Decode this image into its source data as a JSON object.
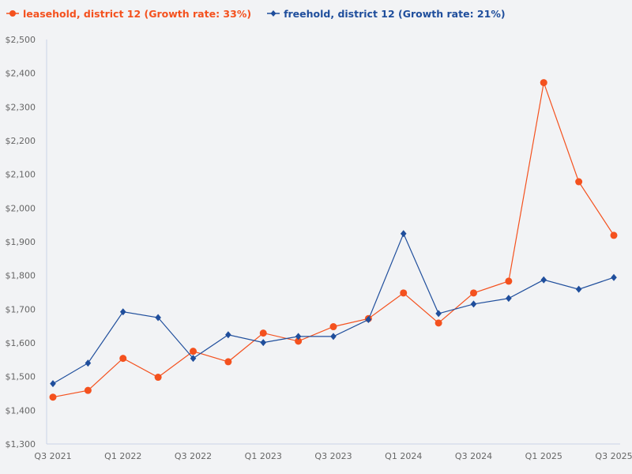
{
  "legend": [
    {
      "label": "leasehold, district 12 (Growth rate: 33%)",
      "color": "#f4511e",
      "marker": "circle"
    },
    {
      "label": "freehold, district 12 (Growth rate: 21%)",
      "color": "#1f4e9c",
      "marker": "diamond"
    }
  ],
  "chart_data": {
    "type": "line",
    "title": "",
    "xlabel": "",
    "ylabel": "",
    "x": [
      "Q3 2021",
      "Q4 2021",
      "Q1 2022",
      "Q2 2022",
      "Q3 2022",
      "Q4 2022",
      "Q1 2023",
      "Q2 2023",
      "Q3 2023",
      "Q4 2023",
      "Q1 2024",
      "Q2 2024",
      "Q3 2024",
      "Q4 2024",
      "Q1 2025",
      "Q2 2025",
      "Q3 2025"
    ],
    "x_tick_labels": [
      "Q3 2021",
      "Q1 2022",
      "Q3 2022",
      "Q1 2023",
      "Q3 2023",
      "Q1 2024",
      "Q3 2024",
      "Q1 2025",
      "Q3 2025"
    ],
    "y_tick_labels": [
      "$1,300",
      "$1,400",
      "$1,500",
      "$1,600",
      "$1,700",
      "$1,800",
      "$1,900",
      "$2,000",
      "$2,100",
      "$2,200",
      "$2,300",
      "$2,400",
      "$2,500"
    ],
    "ylim": [
      1300,
      2500
    ],
    "y_step": 100,
    "grid": false,
    "legend_position": "top-left",
    "series": [
      {
        "name": "leasehold, district 12 (Growth rate: 33%)",
        "color": "#f4511e",
        "marker": "circle",
        "values": [
          1439,
          1459,
          1554,
          1498,
          1575,
          1544,
          1629,
          1605,
          1648,
          1672,
          1748,
          1659,
          1748,
          1783,
          2372,
          2078,
          1919
        ]
      },
      {
        "name": "freehold, district 12 (Growth rate: 21%)",
        "color": "#1f4e9c",
        "marker": "diamond",
        "values": [
          1479,
          1540,
          1692,
          1675,
          1554,
          1624,
          1601,
          1619,
          1619,
          1669,
          1924,
          1687,
          1715,
          1732,
          1787,
          1759,
          1794
        ]
      }
    ]
  }
}
